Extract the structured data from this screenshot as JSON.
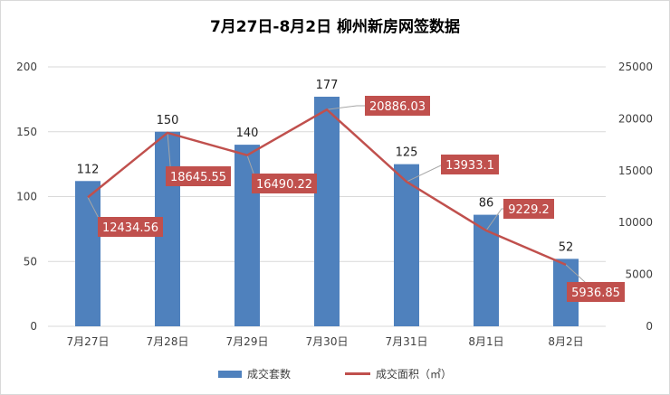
{
  "chart_data": {
    "type": "bar+line",
    "title": "7月27日-8月2日 柳州新房网签数据",
    "categories": [
      "7月27日",
      "7月28日",
      "7月29日",
      "7月30日",
      "7月31日",
      "8月1日",
      "8月2日"
    ],
    "series": [
      {
        "name": "成交套数",
        "type": "bar",
        "axis": "left",
        "color": "#4f81bd",
        "values": [
          112,
          150,
          140,
          177,
          125,
          86,
          52
        ]
      },
      {
        "name": "成交面积（㎡）",
        "type": "line",
        "axis": "right",
        "color": "#c0504d",
        "values": [
          12434.56,
          18645.55,
          16490.22,
          20886.03,
          13933.1,
          9229.2,
          5936.85
        ]
      }
    ],
    "y_left": {
      "range": [
        0,
        200
      ],
      "ticks": [
        0,
        50,
        100,
        150,
        200
      ]
    },
    "y_right": {
      "range": [
        0,
        25000
      ],
      "ticks": [
        0,
        5000,
        10000,
        15000,
        20000,
        25000
      ]
    },
    "value_labels_left": [
      "112",
      "150",
      "140",
      "177",
      "125",
      "86",
      "52"
    ],
    "value_labels_right": [
      "12434.56",
      "18645.55",
      "16490.22",
      "20886.03",
      "13933.1",
      "9229.2",
      "5936.85"
    ],
    "grid": true,
    "legend": "bottom"
  }
}
